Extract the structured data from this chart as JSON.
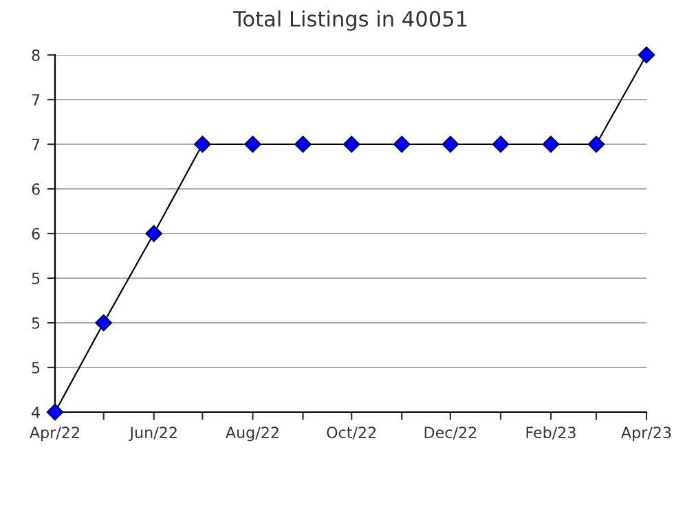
{
  "chart_data": {
    "type": "line",
    "title": "Total Listings in 40051",
    "x": [
      "2022-04",
      "2022-05",
      "2022-06",
      "2022-07",
      "2022-08",
      "2022-09",
      "2022-10",
      "2022-11",
      "2022-12",
      "2023-01",
      "2023-02",
      "2023-03",
      "2023-04"
    ],
    "series": [
      {
        "color": "#0000ff",
        "values": [
          4,
          5,
          6,
          7,
          7,
          7,
          7,
          7,
          7,
          7,
          7,
          7,
          8
        ]
      }
    ],
    "xlim": [
      "2022-04",
      "2023-04"
    ],
    "xticks": [
      {
        "value": "2022-04",
        "label": "Apr/22"
      },
      {
        "value": "2022-05",
        "label": null
      },
      {
        "value": "2022-06",
        "label": "Jun/22"
      },
      {
        "value": "2022-07",
        "label": null
      },
      {
        "value": "2022-08",
        "label": "Aug/22"
      },
      {
        "value": "2022-09",
        "label": null
      },
      {
        "value": "2022-10",
        "label": "Oct/22"
      },
      {
        "value": "2022-11",
        "label": null
      },
      {
        "value": "2022-12",
        "label": "Dec/22"
      },
      {
        "value": "2023-01",
        "label": null
      },
      {
        "value": "2023-02",
        "label": "Feb/23"
      },
      {
        "value": "2023-03",
        "label": null
      },
      {
        "value": "2023-04",
        "label": "Apr/23"
      }
    ],
    "ylim": [
      4,
      8
    ],
    "yticks": [
      4,
      {
        "value": 4.5,
        "label": "5"
      },
      5,
      {
        "value": 5.5,
        "label": "5"
      },
      6,
      {
        "value": 6.5,
        "label": "6"
      },
      7,
      {
        "value": 7.5,
        "label": "7"
      },
      8
    ],
    "grid": "y",
    "marker": "diamond",
    "line_style": "solid",
    "legend": false
  }
}
